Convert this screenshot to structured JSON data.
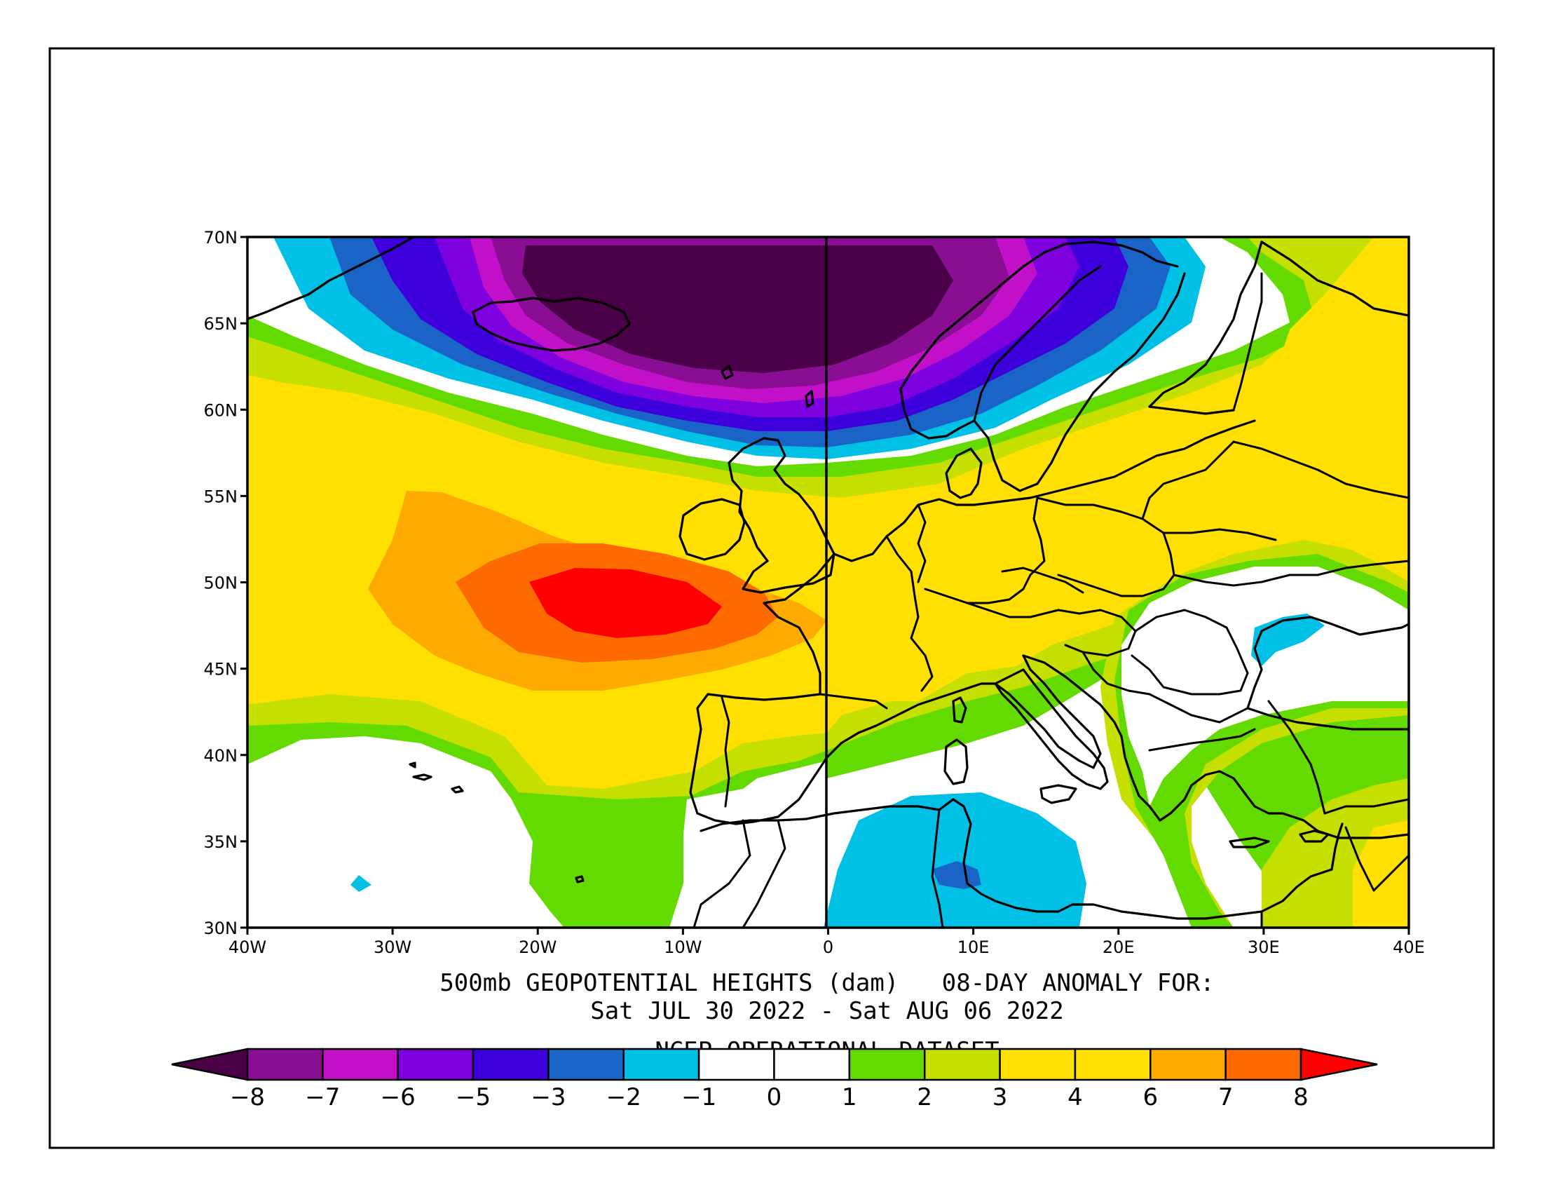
{
  "title": {
    "line1": "500mb GEOPOTENTIAL HEIGHTS (dam)   08-DAY ANOMALY FOR:",
    "line2": "Sat JUL 30 2022 - Sat AUG 06 2022",
    "line3": "NCEP OPERATIONAL DATASET"
  },
  "map": {
    "lon_range": [
      -40,
      40
    ],
    "lat_range": [
      30,
      70
    ],
    "x_ticks": [
      "40W",
      "30W",
      "20W",
      "10W",
      "0",
      "10E",
      "20E",
      "30E",
      "40E"
    ],
    "y_ticks": [
      "70N",
      "65N",
      "60N",
      "55N",
      "50N",
      "45N",
      "40N",
      "35N",
      "30N"
    ],
    "meridian_line": "0",
    "fields": [
      {
        "name": "negative anomaly centre",
        "location": "near Iceland / Norwegian Sea",
        "min_value": "-8"
      },
      {
        "name": "positive anomaly centre",
        "location": "Atlantic west of France",
        "max_value": "8"
      },
      {
        "name": "negative anomaly",
        "location": "Tunisia / central Mediterranean",
        "min_value": "-3"
      },
      {
        "name": "negative anomaly",
        "location": "Black Sea",
        "min_value": "-2"
      }
    ]
  },
  "colorbar": {
    "labels": [
      "-8",
      "-7",
      "-6",
      "-5",
      "-3",
      "-2",
      "-1",
      "0",
      "1",
      "2",
      "3",
      "4",
      "6",
      "7",
      "8"
    ],
    "colors": [
      "#4a0047",
      "#8a0e93",
      "#c20fc8",
      "#7f00de",
      "#3d00dc",
      "#1a64c8",
      "#00c0e6",
      "#ffffff",
      "#ffffff",
      "#63db00",
      "#c5e000",
      "#ffe000",
      "#ffe000",
      "#ffaa00",
      "#ff6a00",
      "#ff0000"
    ]
  },
  "palette": {
    "c_m8": "#4a0047",
    "c_m7": "#8a0e93",
    "c_m6": "#c20fc8",
    "c_m5": "#7f00de",
    "c_m3": "#3d00dc",
    "c_m2": "#1a64c8",
    "c_m1": "#00c0e6",
    "c_0": "#ffffff",
    "c_1": "#63db00",
    "c_2": "#c5e000",
    "c_3": "#ffe000",
    "c_6": "#ffaa00",
    "c_7": "#ff6a00",
    "c_8": "#ff0000"
  }
}
